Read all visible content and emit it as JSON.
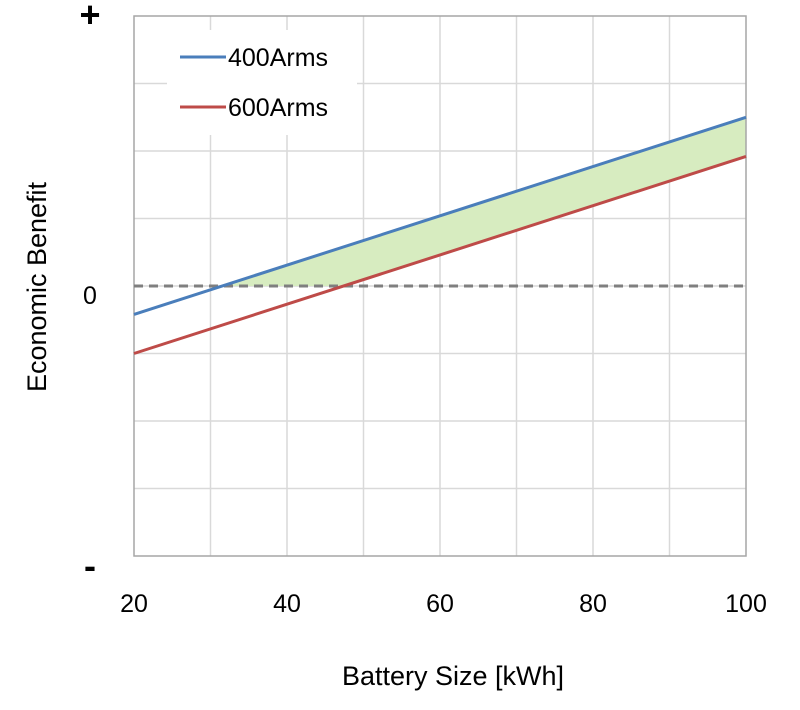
{
  "chart_data": {
    "type": "line",
    "title": "",
    "xlabel": "Battery Size [kWh]",
    "ylabel": "Economic Benefit",
    "x_ticks": [
      "20",
      "40",
      "60",
      "80",
      "100"
    ],
    "y_ticks": [
      "+",
      "0",
      "-"
    ],
    "xlim": [
      20,
      100
    ],
    "ylim": [
      -4,
      4
    ],
    "grid": true,
    "legend_position": "top-left",
    "series": [
      {
        "name": "400Arms",
        "color": "#4a7ebb",
        "x": [
          20,
          100
        ],
        "y": [
          -0.42,
          2.5
        ]
      },
      {
        "name": "600Arms",
        "color": "#be4b48",
        "x": [
          20,
          100
        ],
        "y": [
          -1.0,
          1.92
        ]
      }
    ],
    "zero_line": {
      "y": 0,
      "color": "#7f7f7f",
      "style": "dashed"
    },
    "shaded_region": {
      "description": "area above zero between series",
      "color": "#d7ecc0"
    }
  }
}
